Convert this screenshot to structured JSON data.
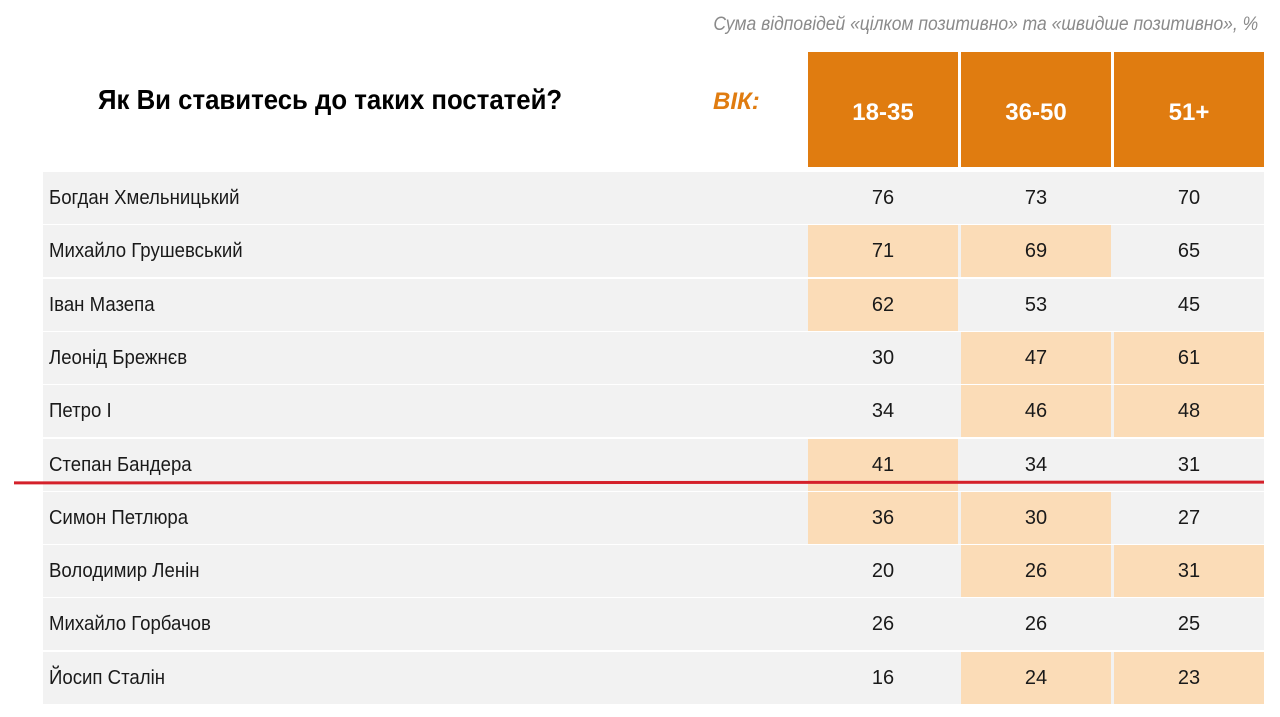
{
  "subtitle": "Сума відповідей «цілком позитивно» та «швидше позитивно», %",
  "title": "Як Ви ставитесь до таких постатей?",
  "age_label": "ВІК:",
  "colors": {
    "accent": "#e07c10",
    "highlight": "#fbdcb7",
    "row_bg": "#f2f2f2",
    "underline": "#d4202a"
  },
  "chart_data": {
    "type": "table",
    "columns": [
      "18-35",
      "36-50",
      "51+"
    ],
    "rows": [
      {
        "name": "Богдан Хмельницький",
        "values": [
          76,
          73,
          70
        ],
        "highlight": [
          false,
          false,
          false
        ]
      },
      {
        "name": "Михайло Грушевський",
        "values": [
          71,
          69,
          65
        ],
        "highlight": [
          true,
          true,
          false
        ]
      },
      {
        "name": "Іван Мазепа",
        "values": [
          62,
          53,
          45
        ],
        "highlight": [
          true,
          false,
          false
        ]
      },
      {
        "name": "Леонід Брежнєв",
        "values": [
          30,
          47,
          61
        ],
        "highlight": [
          false,
          true,
          true
        ]
      },
      {
        "name": "Петро І",
        "values": [
          34,
          46,
          48
        ],
        "highlight": [
          false,
          true,
          true
        ]
      },
      {
        "name": "Степан Бандера",
        "values": [
          41,
          34,
          31
        ],
        "highlight": [
          true,
          false,
          false
        ]
      },
      {
        "name": "Симон Петлюра",
        "values": [
          36,
          30,
          27
        ],
        "highlight": [
          true,
          true,
          false
        ]
      },
      {
        "name": "Володимир Ленін",
        "values": [
          20,
          26,
          31
        ],
        "highlight": [
          false,
          true,
          true
        ]
      },
      {
        "name": "Михайло Горбачов",
        "values": [
          26,
          26,
          25
        ],
        "highlight": [
          false,
          false,
          false
        ]
      },
      {
        "name": "Йосип Сталін",
        "values": [
          16,
          24,
          23
        ],
        "highlight": [
          false,
          true,
          true
        ]
      }
    ]
  }
}
